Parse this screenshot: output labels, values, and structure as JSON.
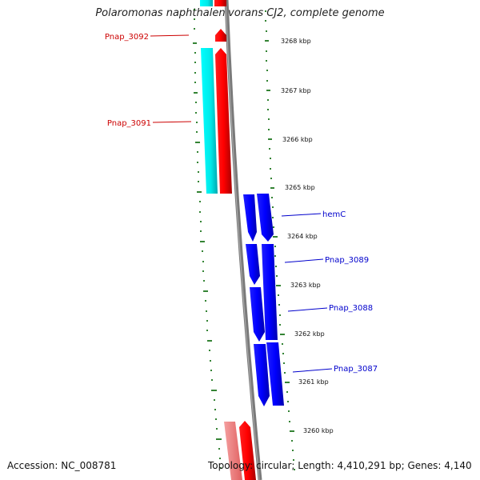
{
  "title": "Polaromonas naphthalenivorans CJ2, complete genome",
  "accession_line": "Accession: NC_008781",
  "summary_line": "Topology: circular; Length: 4,410,291 bp; Genes: 4,140",
  "ticks": [
    "3268 kbp",
    "3267 kbp",
    "3266 kbp",
    "3265 kbp",
    "3264 kbp",
    "3263 kbp",
    "3262 kbp",
    "3261 kbp",
    "3260 kbp"
  ],
  "genes": [
    {
      "name": "Pnap_3092",
      "strand": "forward",
      "color": "#cc0000"
    },
    {
      "name": "Pnap_3091",
      "strand": "forward",
      "color": "#cc0000"
    },
    {
      "name": "hemC",
      "strand": "reverse",
      "color": "#0000cc"
    },
    {
      "name": "Pnap_3089",
      "strand": "reverse",
      "color": "#0000cc"
    },
    {
      "name": "Pnap_3088",
      "strand": "reverse",
      "color": "#0000cc"
    },
    {
      "name": "Pnap_3087",
      "strand": "reverse",
      "color": "#0000cc"
    }
  ],
  "colors": {
    "forward_cds": "#ff0000",
    "forward_feature": "#00ffff",
    "reverse_cds": "#0000ff",
    "backbone": "#808080",
    "ticks": "#006600"
  }
}
